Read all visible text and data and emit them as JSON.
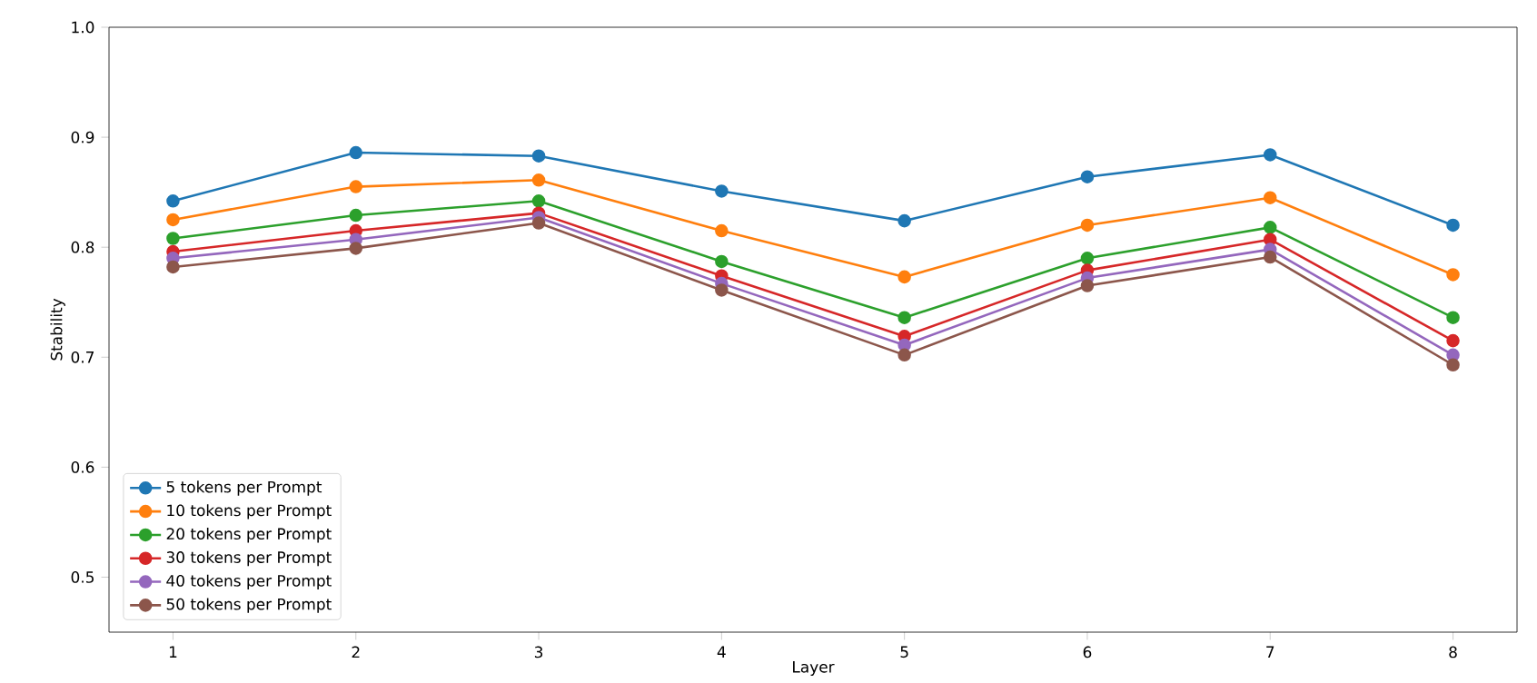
{
  "chart_data": {
    "type": "line",
    "xlabel": "Layer",
    "ylabel": "Stability",
    "x": [
      1,
      2,
      3,
      4,
      5,
      6,
      7,
      8
    ],
    "xlim": [
      0.65,
      8.35
    ],
    "xticks": [
      1,
      2,
      3,
      4,
      5,
      6,
      7,
      8
    ],
    "ylim": [
      0.45,
      1.0
    ],
    "yticks": [
      0.5,
      0.6,
      0.7,
      0.8,
      0.9,
      {
        "value": 1.0,
        "label": "1.0"
      }
    ],
    "legend": "bottom left",
    "marker": "circle",
    "line_style": "solid",
    "series": [
      {
        "name": "5 tokens per Prompt",
        "color": "#1f77b4",
        "values": [
          0.842,
          0.886,
          0.883,
          0.851,
          0.824,
          0.864,
          0.884,
          0.82
        ]
      },
      {
        "name": "10 tokens per Prompt",
        "color": "#ff7f0e",
        "values": [
          0.825,
          0.855,
          0.861,
          0.815,
          0.773,
          0.82,
          0.845,
          0.775
        ]
      },
      {
        "name": "20 tokens per Prompt",
        "color": "#2ca02c",
        "values": [
          0.808,
          0.829,
          0.842,
          0.787,
          0.736,
          0.79,
          0.818,
          0.736
        ]
      },
      {
        "name": "30 tokens per Prompt",
        "color": "#d62728",
        "values": [
          0.796,
          0.815,
          0.831,
          0.774,
          0.719,
          0.779,
          0.807,
          0.715
        ]
      },
      {
        "name": "40 tokens per Prompt",
        "color": "#9467bd",
        "values": [
          0.79,
          0.807,
          0.827,
          0.767,
          0.711,
          0.772,
          0.798,
          0.702
        ]
      },
      {
        "name": "50 tokens per Prompt",
        "color": "#8c564b",
        "values": [
          0.782,
          0.799,
          0.822,
          0.761,
          0.702,
          0.765,
          0.791,
          0.693
        ]
      }
    ]
  }
}
